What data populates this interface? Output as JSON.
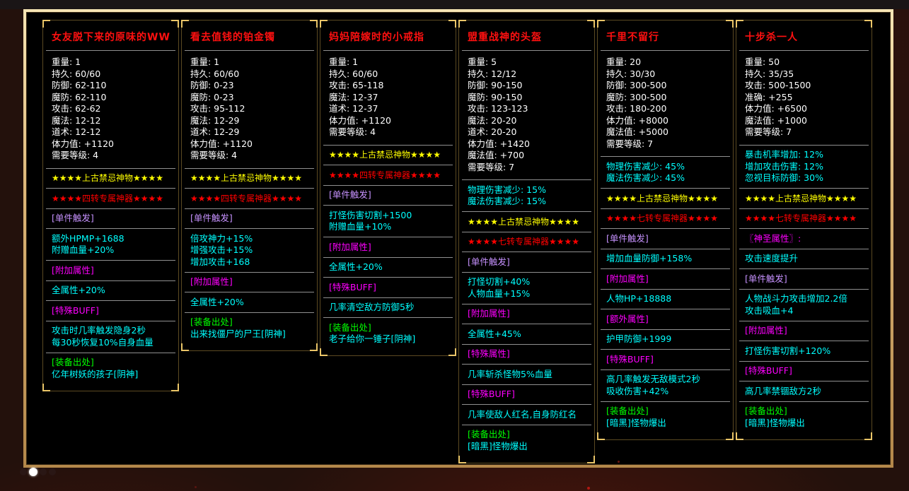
{
  "theme": {
    "frame_gold": "#d8b271",
    "panel_border": "#5c4a22",
    "corner_gold": "#eac568",
    "separator": "#8f8f8f",
    "title_red": "#ff1010",
    "stat_white": "#ffffff",
    "star_yellow": "#ffff00",
    "star_red": "#ff0000",
    "attr_cyan": "#00ffff",
    "label_magenta": "#ff00ff",
    "label_violet": "#c792ff",
    "source_green": "#00ff00",
    "background": "#23110c"
  },
  "pagination": {
    "dots": [
      {
        "active": false
      },
      {
        "active": true
      },
      {
        "active": false
      },
      {
        "active": false
      }
    ]
  },
  "panels": [
    {
      "title": "女友脱下来的原味的WW",
      "stats": [
        {
          "label": "重量",
          "value": "1"
        },
        {
          "label": "持久",
          "value": "60/60"
        },
        {
          "label": "防御",
          "value": "62-110"
        },
        {
          "label": "魔防",
          "value": "62-110"
        },
        {
          "label": "攻击",
          "value": "62-62"
        },
        {
          "label": "魔法",
          "value": "12-12"
        },
        {
          "label": "道术",
          "value": "12-12"
        },
        {
          "label": "体力值",
          "value": "+1120"
        },
        {
          "label": "需要等级",
          "value": "4"
        }
      ],
      "sections": [
        {
          "lines": [
            {
              "t": "★★★★上古禁忌神物★★★★",
              "c": "yellow",
              "s": true
            }
          ]
        },
        {
          "lines": [
            {
              "t": "★★★★四转专属神器★★★★",
              "c": "red",
              "s": true
            }
          ]
        },
        {
          "lines": [
            {
              "t": "[单件触发]",
              "c": "violet"
            }
          ]
        },
        {
          "lines": [
            {
              "t": "额外HPMP+1688",
              "c": "cyan"
            },
            {
              "t": "附赠血量+20%",
              "c": "cyan"
            }
          ]
        },
        {
          "lines": [
            {
              "t": "[附加属性]",
              "c": "magenta"
            }
          ]
        },
        {
          "lines": [
            {
              "t": "全属性+20%",
              "c": "cyan"
            }
          ]
        },
        {
          "lines": [
            {
              "t": "[特殊BUFF]",
              "c": "magenta"
            }
          ]
        },
        {
          "lines": [
            {
              "t": "攻击时几率触发隐身2秒",
              "c": "cyan"
            },
            {
              "t": "每30秒恢复10%自身血量",
              "c": "cyan"
            }
          ]
        },
        {
          "lines": [
            {
              "t": "[装备出处]",
              "c": "green"
            },
            {
              "t": "亿年树妖的孩子[阴神]",
              "c": "cyan"
            }
          ]
        }
      ]
    },
    {
      "title": "看去值钱的铂金镯",
      "stats": [
        {
          "label": "重量",
          "value": "1"
        },
        {
          "label": "持久",
          "value": "60/60"
        },
        {
          "label": "防御",
          "value": "0-23"
        },
        {
          "label": "魔防",
          "value": "0-23"
        },
        {
          "label": "攻击",
          "value": "95-112"
        },
        {
          "label": "魔法",
          "value": "12-29"
        },
        {
          "label": "道术",
          "value": "12-29"
        },
        {
          "label": "体力值",
          "value": "+1120"
        },
        {
          "label": "需要等级",
          "value": "4"
        }
      ],
      "sections": [
        {
          "lines": [
            {
              "t": "★★★★上古禁忌神物★★★★",
              "c": "yellow",
              "s": true
            }
          ]
        },
        {
          "lines": [
            {
              "t": "★★★★四转专属神器★★★★",
              "c": "red",
              "s": true
            }
          ]
        },
        {
          "lines": [
            {
              "t": "[单件触发]",
              "c": "violet"
            }
          ]
        },
        {
          "lines": [
            {
              "t": "倍攻神力+15%",
              "c": "cyan"
            },
            {
              "t": "增强攻击+15%",
              "c": "cyan"
            },
            {
              "t": "增加攻击+168",
              "c": "cyan"
            }
          ]
        },
        {
          "lines": [
            {
              "t": "[附加属性]",
              "c": "magenta"
            }
          ]
        },
        {
          "lines": [
            {
              "t": "全属性+20%",
              "c": "cyan"
            }
          ]
        },
        {
          "lines": [
            {
              "t": "[装备出处]",
              "c": "green"
            },
            {
              "t": "出来找僵尸的尸王[阴神]",
              "c": "cyan"
            }
          ]
        }
      ]
    },
    {
      "title": "妈妈陪嫁时的小戒指",
      "stats": [
        {
          "label": "重量",
          "value": "1"
        },
        {
          "label": "持久",
          "value": "60/60"
        },
        {
          "label": "攻击",
          "value": "65-118"
        },
        {
          "label": "魔法",
          "value": "12-37"
        },
        {
          "label": "道术",
          "value": "12-37"
        },
        {
          "label": "体力值",
          "value": "+1120"
        },
        {
          "label": "需要等级",
          "value": "4"
        }
      ],
      "sections": [
        {
          "lines": [
            {
              "t": "★★★★上古禁忌神物★★★★",
              "c": "yellow",
              "s": true
            }
          ]
        },
        {
          "lines": [
            {
              "t": "★★★★四转专属神器★★★★",
              "c": "red",
              "s": true
            }
          ]
        },
        {
          "lines": [
            {
              "t": "[单件触发]",
              "c": "violet"
            }
          ]
        },
        {
          "lines": [
            {
              "t": "打怪伤害切割+1500",
              "c": "cyan"
            },
            {
              "t": "附赠血量+10%",
              "c": "cyan"
            }
          ]
        },
        {
          "lines": [
            {
              "t": "[附加属性]",
              "c": "magenta"
            }
          ]
        },
        {
          "lines": [
            {
              "t": "全属性+20%",
              "c": "cyan"
            }
          ]
        },
        {
          "lines": [
            {
              "t": "[特殊BUFF]",
              "c": "magenta"
            }
          ]
        },
        {
          "lines": [
            {
              "t": "几率清空敌方防御5秒",
              "c": "cyan"
            }
          ]
        },
        {
          "lines": [
            {
              "t": "[装备出处]",
              "c": "green"
            },
            {
              "t": "老子给你一锤子[阴神]",
              "c": "cyan"
            }
          ]
        }
      ]
    },
    {
      "title": "盟重战神的头盔",
      "stats": [
        {
          "label": "重量",
          "value": "5"
        },
        {
          "label": "持久",
          "value": "12/12"
        },
        {
          "label": "防御",
          "value": "90-150"
        },
        {
          "label": "魔防",
          "value": "90-150"
        },
        {
          "label": "攻击",
          "value": "123-123"
        },
        {
          "label": "魔法",
          "value": "20-20"
        },
        {
          "label": "道术",
          "value": "20-20"
        },
        {
          "label": "体力值",
          "value": "+1420"
        },
        {
          "label": "魔法值",
          "value": "+700"
        },
        {
          "label": "需要等级",
          "value": "7"
        }
      ],
      "sections": [
        {
          "lines": [
            {
              "t": "物理伤害减少: 15%",
              "c": "cyan"
            },
            {
              "t": "魔法伤害减少: 15%",
              "c": "cyan"
            }
          ]
        },
        {
          "lines": [
            {
              "t": "★★★★上古禁忌神物★★★★",
              "c": "yellow",
              "s": true
            }
          ]
        },
        {
          "lines": [
            {
              "t": "★★★★七转专属神器★★★★",
              "c": "red",
              "s": true
            }
          ]
        },
        {
          "lines": [
            {
              "t": "[单件触发]",
              "c": "violet"
            }
          ]
        },
        {
          "lines": [
            {
              "t": "打怪切割+40%",
              "c": "cyan"
            },
            {
              "t": "人物血量+15%",
              "c": "cyan"
            }
          ]
        },
        {
          "lines": [
            {
              "t": "[附加属性]",
              "c": "magenta"
            }
          ]
        },
        {
          "lines": [
            {
              "t": "全属性+45%",
              "c": "cyan"
            }
          ]
        },
        {
          "lines": [
            {
              "t": "[特殊属性]",
              "c": "magenta"
            }
          ]
        },
        {
          "lines": [
            {
              "t": "几率斩杀怪物5%血量",
              "c": "cyan"
            }
          ]
        },
        {
          "lines": [
            {
              "t": "[特殊BUFF]",
              "c": "magenta"
            }
          ]
        },
        {
          "lines": [
            {
              "t": "几率使敌人红名,自身防红名",
              "c": "cyan"
            }
          ]
        },
        {
          "lines": [
            {
              "t": "[装备出处]",
              "c": "green"
            },
            {
              "t": "[暗黑]怪物爆出",
              "c": "cyan"
            }
          ]
        }
      ]
    },
    {
      "title": "千里不留行",
      "stats": [
        {
          "label": "重量",
          "value": "20"
        },
        {
          "label": "持久",
          "value": "30/30"
        },
        {
          "label": "防御",
          "value": "300-500"
        },
        {
          "label": "魔防",
          "value": "300-500"
        },
        {
          "label": "攻击",
          "value": "180-200"
        },
        {
          "label": "体力值",
          "value": "+8000"
        },
        {
          "label": "魔法值",
          "value": "+5000"
        },
        {
          "label": "需要等级",
          "value": "7"
        }
      ],
      "sections": [
        {
          "lines": [
            {
              "t": "物理伤害减少: 45%",
              "c": "cyan"
            },
            {
              "t": "魔法伤害减少: 45%",
              "c": "cyan"
            }
          ]
        },
        {
          "lines": [
            {
              "t": "★★★★上古禁忌神物★★★★",
              "c": "yellow",
              "s": true
            }
          ]
        },
        {
          "lines": [
            {
              "t": "★★★★七转专属神器★★★★",
              "c": "red",
              "s": true
            }
          ]
        },
        {
          "lines": [
            {
              "t": "[单件触发]",
              "c": "violet"
            }
          ]
        },
        {
          "lines": [
            {
              "t": "增加血量防御+158%",
              "c": "cyan"
            }
          ]
        },
        {
          "lines": [
            {
              "t": "[附加属性]",
              "c": "magenta"
            }
          ]
        },
        {
          "lines": [
            {
              "t": "人物HP+18888",
              "c": "cyan"
            }
          ]
        },
        {
          "lines": [
            {
              "t": "[额外属性]",
              "c": "magenta"
            }
          ]
        },
        {
          "lines": [
            {
              "t": "护甲防御+1999",
              "c": "cyan"
            }
          ]
        },
        {
          "lines": [
            {
              "t": "[特殊BUFF]",
              "c": "magenta"
            }
          ]
        },
        {
          "lines": [
            {
              "t": "高几率触发无敌模式2秒",
              "c": "cyan"
            },
            {
              "t": "吸收伤害+42%",
              "c": "cyan"
            }
          ]
        },
        {
          "lines": [
            {
              "t": "[装备出处]",
              "c": "green"
            },
            {
              "t": "[暗黑]怪物爆出",
              "c": "cyan"
            }
          ]
        }
      ]
    },
    {
      "title": "十步杀一人",
      "stats": [
        {
          "label": "重量",
          "value": "50"
        },
        {
          "label": "持久",
          "value": "35/35"
        },
        {
          "label": "攻击",
          "value": "500-1500"
        },
        {
          "label": "准确",
          "value": "+255"
        },
        {
          "label": "体力值",
          "value": "+6500"
        },
        {
          "label": "魔法值",
          "value": "+1000"
        },
        {
          "label": "需要等级",
          "value": "7"
        }
      ],
      "sections": [
        {
          "lines": [
            {
              "t": "暴击机率增加: 12%",
              "c": "cyan"
            },
            {
              "t": "增加攻击伤害: 12%",
              "c": "cyan"
            },
            {
              "t": "忽视目标防御: 30%",
              "c": "cyan"
            }
          ]
        },
        {
          "lines": [
            {
              "t": "★★★★上古禁忌神物★★★★",
              "c": "yellow",
              "s": true
            }
          ]
        },
        {
          "lines": [
            {
              "t": "★★★★七转专属神器★★★★",
              "c": "red",
              "s": true
            }
          ]
        },
        {
          "lines": [
            {
              "t": "〖神圣属性〗:",
              "c": "magenta"
            }
          ]
        },
        {
          "lines": [
            {
              "t": "攻击速度提升",
              "c": "cyan"
            }
          ]
        },
        {
          "lines": [
            {
              "t": "[单件触发]",
              "c": "violet"
            }
          ]
        },
        {
          "lines": [
            {
              "t": "人物战斗力攻击增加2.2倍",
              "c": "cyan"
            },
            {
              "t": "攻击吸血+4",
              "c": "cyan"
            }
          ]
        },
        {
          "lines": [
            {
              "t": "[附加属性]",
              "c": "magenta"
            }
          ]
        },
        {
          "lines": [
            {
              "t": "打怪伤害切割+120%",
              "c": "cyan"
            }
          ]
        },
        {
          "lines": [
            {
              "t": "[特殊BUFF]",
              "c": "magenta"
            }
          ]
        },
        {
          "lines": [
            {
              "t": "高几率禁锢敌方2秒",
              "c": "cyan"
            }
          ]
        },
        {
          "lines": [
            {
              "t": "[装备出处]",
              "c": "green"
            },
            {
              "t": "[暗黑]怪物爆出",
              "c": "cyan"
            }
          ]
        }
      ]
    }
  ]
}
